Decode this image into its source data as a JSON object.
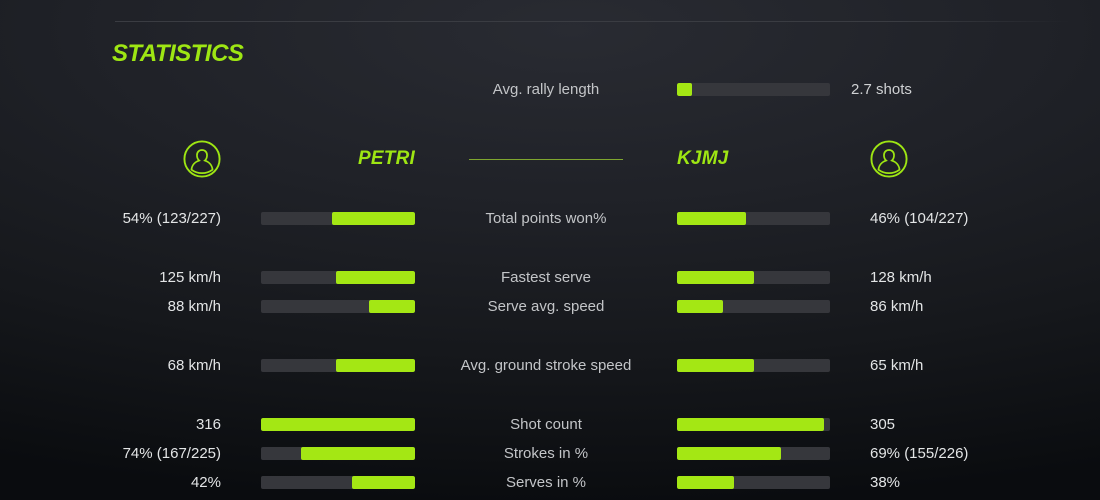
{
  "colors": {
    "accent": "#9ee613",
    "bar_fill": "#a4e714",
    "bar_track": "#36373c",
    "separator": "#7fa62f",
    "value_text": "#e3e5e6",
    "label_text": "#c3c5c8",
    "top_line": "#3a3c42"
  },
  "header": {
    "title": "STATISTICS"
  },
  "rally": {
    "label": "Avg. rally length",
    "value": "2.7 shots",
    "fill_pct": 10
  },
  "players": {
    "left": {
      "name": "PETRI"
    },
    "right": {
      "name": "KJMJ"
    }
  },
  "stats": {
    "rows": [
      {
        "label": "Total points won%",
        "left_value": "54% (123/227)",
        "right_value": "46% (104/227)",
        "left_fill_pct": 54,
        "right_fill_pct": 45,
        "gap_before": false
      },
      {
        "label": "Fastest serve",
        "left_value": "125 km/h",
        "right_value": "128 km/h",
        "left_fill_pct": 51,
        "right_fill_pct": 50,
        "gap_before": true
      },
      {
        "label": "Serve avg. speed",
        "left_value": "88 km/h",
        "right_value": "86 km/h",
        "left_fill_pct": 30,
        "right_fill_pct": 30,
        "gap_before": false
      },
      {
        "label": "Avg. ground stroke speed",
        "left_value": "68 km/h",
        "right_value": "65 km/h",
        "left_fill_pct": 51,
        "right_fill_pct": 50,
        "gap_before": true
      },
      {
        "label": "Shot count",
        "left_value": "316",
        "right_value": "305",
        "left_fill_pct": 100,
        "right_fill_pct": 96,
        "gap_before": true
      },
      {
        "label": "Strokes in %",
        "left_value": "74% (167/225)",
        "right_value": "69% (155/226)",
        "left_fill_pct": 74,
        "right_fill_pct": 68,
        "gap_before": false
      },
      {
        "label": "Serves in %",
        "left_value": "42%",
        "right_value": "38%",
        "left_fill_pct": 41,
        "right_fill_pct": 37,
        "gap_before": false
      }
    ]
  }
}
